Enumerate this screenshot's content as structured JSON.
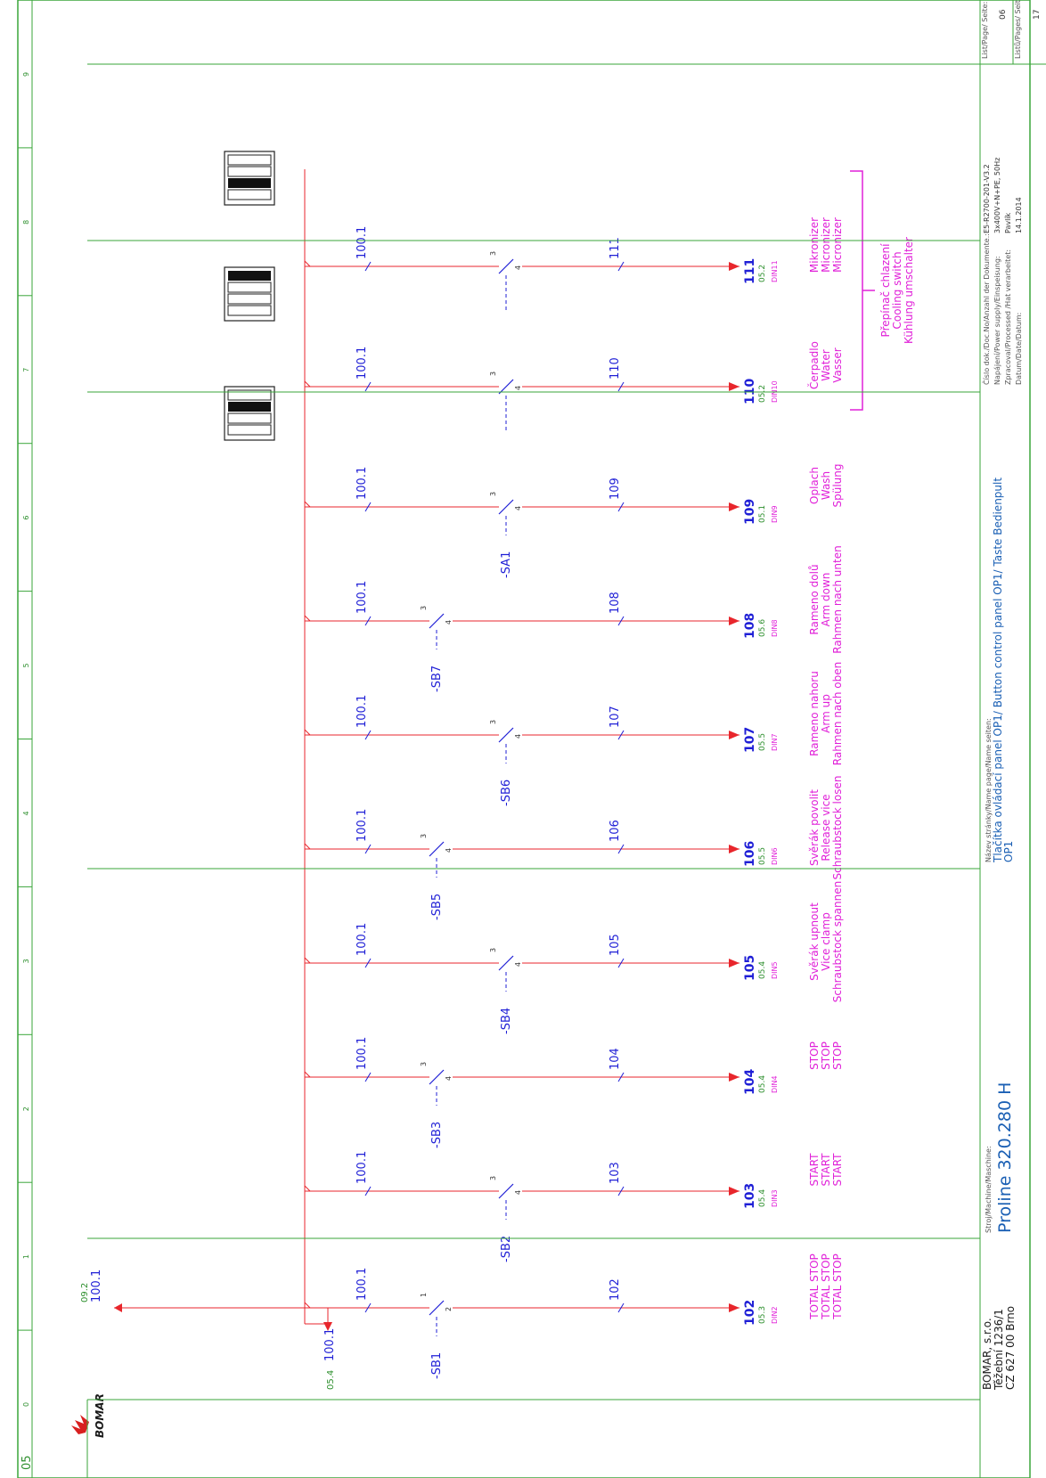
{
  "sheet_number": "05",
  "colors": {
    "frame": "#3aa63a",
    "wire": "#e8262c",
    "device": "#1f1fd6",
    "label": "#e020d8",
    "ref": "#2d8f2d",
    "grid": "#2d8f2d"
  },
  "grid_numbers": [
    "0",
    "1",
    "2",
    "3",
    "4",
    "5",
    "6",
    "7",
    "8",
    "9"
  ],
  "supply": {
    "in_ref": "09.2",
    "in_label": "100.1",
    "out_ref": "05.4",
    "out_label": "100.1"
  },
  "circuits": [
    {
      "col": "0",
      "in": "100.1",
      "dev": "-SB1",
      "t1": "1",
      "t2": "2",
      "wire": "102",
      "out": "102",
      "ref": "05.3",
      "din": "DIN2",
      "text": [
        "TOTAL STOP",
        "TOTAL STOP",
        "TOTAL STOP"
      ]
    },
    {
      "col": "1",
      "in": "100.1",
      "dev": "-SB2",
      "t1": "3",
      "t2": "4",
      "wire": "103",
      "out": "103",
      "ref": "05.4",
      "din": "DIN3",
      "text": [
        "START",
        "START",
        "START"
      ]
    },
    {
      "col": "2",
      "in": "100.1",
      "dev": "-SB3",
      "t1": "3",
      "t2": "4",
      "wire": "104",
      "out": "104",
      "ref": "05.4",
      "din": "DIN4",
      "text": [
        "STOP",
        "STOP",
        "STOP"
      ]
    },
    {
      "col": "3",
      "in": "100.1",
      "dev": "-SB4",
      "t1": "3",
      "t2": "4",
      "wire": "105",
      "out": "105",
      "ref": "05.4",
      "din": "DIN5",
      "text": [
        "Svěrák upnout",
        "Vice clamp",
        "Schraubstock spannen"
      ]
    },
    {
      "col": "4",
      "in": "100.1",
      "dev": "-SB5",
      "t1": "3",
      "t2": "4",
      "wire": "106",
      "out": "106",
      "ref": "05.5",
      "din": "DIN6",
      "text": [
        "Svěrák povolit",
        "Release vice",
        "Schraubstock losen"
      ]
    },
    {
      "col": "5",
      "in": "100.1",
      "dev": "-SB6",
      "t1": "3",
      "t2": "4",
      "wire": "107",
      "out": "107",
      "ref": "05.5",
      "din": "DIN7",
      "text": [
        "Rameno nahoru",
        "Arm up",
        "Rahmen nach oben"
      ]
    },
    {
      "col": "6",
      "in": "100.1",
      "dev": "-SB7",
      "t1": "3",
      "t2": "4",
      "wire": "108",
      "out": "108",
      "ref": "05.6",
      "din": "DIN8",
      "text": [
        "Rameno dolů",
        "Arm down",
        "Rahmen nach unten"
      ]
    },
    {
      "col": "7",
      "in": "100.1",
      "dev": "-SA1",
      "t1": "3",
      "t2": "4",
      "wire": "109",
      "out": "109",
      "ref": "05.1",
      "din": "DIN9",
      "text": [
        "Oplach",
        "Wash",
        "Spülung"
      ]
    },
    {
      "col": "8",
      "in": "100.1",
      "dev": "",
      "t1": "3",
      "t2": "4",
      "wire": "110",
      "out": "110",
      "ref": "05.2",
      "din": "DIN10",
      "text": [
        "Čerpadlo",
        "Water",
        "Vasser"
      ]
    },
    {
      "col": "9",
      "in": "100.1",
      "dev": "",
      "t1": "3",
      "t2": "4",
      "wire": "111",
      "out": "111",
      "ref": "05.2",
      "din": "DIN11",
      "text": [
        "Mikronizer",
        "Micronizer",
        "Micronizer"
      ]
    }
  ],
  "cooling_switch": [
    "Přepínač chlazení",
    "Cooling switch",
    "Kühlung umschalter"
  ],
  "title_block": {
    "company": [
      "BOMAR, s.r.o.",
      "Těžební 1236/1",
      "CZ 627 00 Brno"
    ],
    "machine_caption": "Stroj/Machine/Maschine:",
    "machine": "Proline 320.280 H",
    "page_caption": "Název stránky/Name page/Name seiten:",
    "page_name": "Tlačítka ovládací panel OP1/ Button control panel OP1/ Taste Bedienpult",
    "page_name2": "OP1",
    "rows": [
      {
        "caption": "Číslo dok./Doc.No/Anzahl der Dokumente.:",
        "value": "E5-R2700-201-V3.2"
      },
      {
        "caption": "Napájení/Power supply/Einspeisung:",
        "value": "3x400V+N+PE, 50Hz"
      },
      {
        "caption": "Zpracoval/Processed /Hat verarbeitet:",
        "value": "Pavlík"
      },
      {
        "caption": "Datum/Date/Datum:",
        "value": "14.1.2014"
      }
    ],
    "page_caption2": "List/Page/ Seite:",
    "page_value": "06",
    "pages_caption": "Listů/Pages/ Seiten:",
    "pages_value": "17"
  }
}
